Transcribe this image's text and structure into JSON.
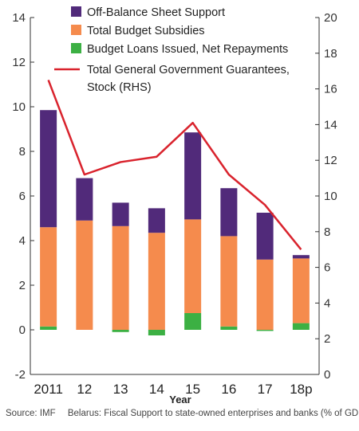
{
  "chart_data": {
    "type": "bar",
    "categories": [
      "2011",
      "12",
      "13",
      "14",
      "15",
      "16",
      "17",
      "18p"
    ],
    "xlabel": "Year",
    "ylim": [
      -2,
      14
    ],
    "y_ticks": [
      -2,
      0,
      2,
      4,
      6,
      8,
      10,
      12,
      14
    ],
    "y2lim": [
      0,
      20
    ],
    "y2_ticks": [
      0,
      2,
      4,
      6,
      8,
      10,
      12,
      14,
      16,
      18,
      20
    ],
    "legend_position": "top-right",
    "grid": false,
    "series": [
      {
        "name": "Off-Balance Sheet Support",
        "kind": "stacked-bar",
        "color": "#512a7a",
        "values": [
          5.25,
          1.9,
          1.05,
          1.1,
          3.9,
          2.15,
          2.1,
          0.15
        ]
      },
      {
        "name": "Total Budget Subsidies",
        "kind": "stacked-bar",
        "color": "#f58b4d",
        "values": [
          4.45,
          4.9,
          4.65,
          4.35,
          4.2,
          4.05,
          3.15,
          2.9
        ]
      },
      {
        "name": "Budget Loans Issued, Net Repayments",
        "kind": "stacked-bar",
        "color": "#3cb043",
        "values": [
          0.15,
          0.0,
          -0.1,
          -0.25,
          0.75,
          0.15,
          -0.05,
          0.3
        ]
      },
      {
        "name": "Total General Government Guarantees, Stock (RHS)",
        "kind": "line",
        "axis": "right",
        "color": "#d9232d",
        "values": [
          16.5,
          11.2,
          11.9,
          12.2,
          14.1,
          11.2,
          9.5,
          7.0
        ]
      }
    ]
  },
  "footer": {
    "source": "Source: IMF",
    "caption": "Belarus: Fiscal Support to state-owned enterprises and banks (% of GDP)"
  }
}
